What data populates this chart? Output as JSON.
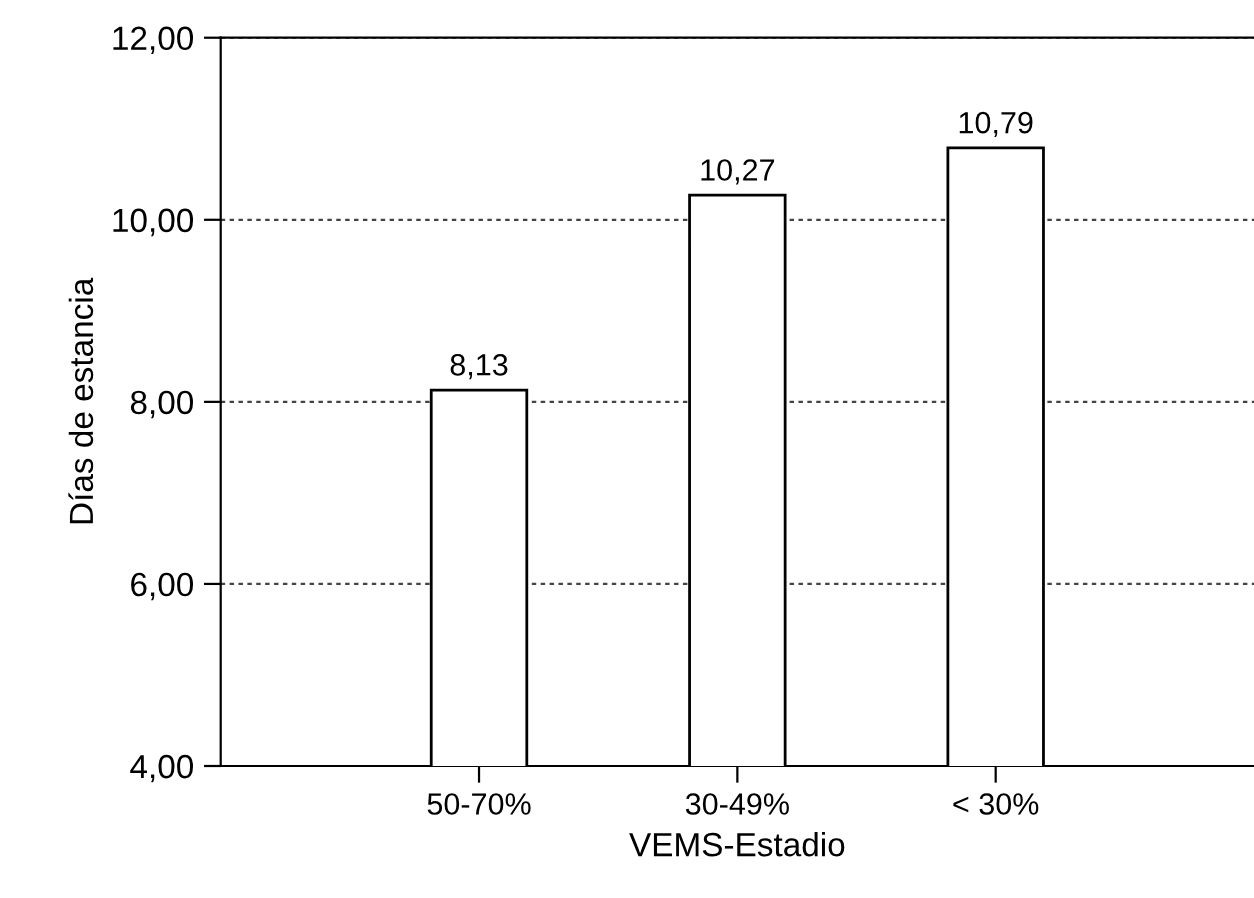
{
  "chart_data": {
    "type": "bar",
    "xlabel": "VEMS-Estadio",
    "ylabel": "Días de estancia",
    "categories": [
      "50-70%",
      "30-49%",
      "< 30%"
    ],
    "values": [
      8.13,
      10.27,
      10.79
    ],
    "value_labels": [
      "8,13",
      "10,27",
      "10,79"
    ],
    "color": "#ffffff",
    "ylim": [
      4,
      12
    ],
    "yticks": [
      {
        "value": 4,
        "label": "4,00"
      },
      {
        "value": 6,
        "label": "6,00"
      },
      {
        "value": 8,
        "label": "8,00"
      },
      {
        "value": 10,
        "label": "10,00"
      },
      {
        "value": 12,
        "label": "12,00"
      }
    ],
    "grid": "y",
    "legend": false
  }
}
